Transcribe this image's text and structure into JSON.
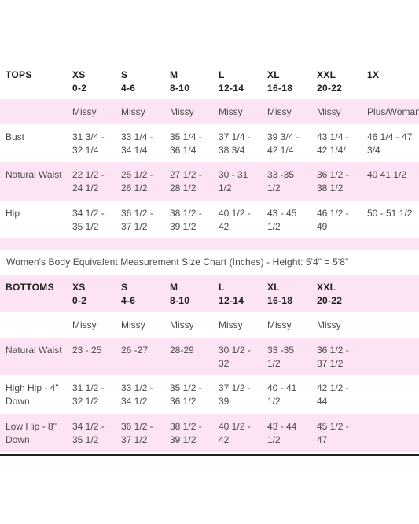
{
  "tops": {
    "header": [
      [
        "TOPS"
      ],
      [
        "XS",
        "0-2"
      ],
      [
        "S",
        "4-6"
      ],
      [
        "M",
        "8-10"
      ],
      [
        "L",
        "12-14"
      ],
      [
        "XL",
        "16-18"
      ],
      [
        "XXL",
        "20-22"
      ],
      [
        "1X"
      ]
    ],
    "rows": [
      {
        "name": "type-row",
        "cells": [
          [
            ""
          ],
          [
            "Missy"
          ],
          [
            "Missy"
          ],
          [
            "Missy"
          ],
          [
            "Missy"
          ],
          [
            "Missy"
          ],
          [
            "Missy"
          ],
          [
            "Plus/Woman"
          ]
        ]
      },
      {
        "name": "bust-row",
        "cells": [
          [
            "Bust"
          ],
          [
            "31 3/4 -",
            "32 1/4"
          ],
          [
            "33 1/4 -",
            "34 1/4"
          ],
          [
            "35 1/4 -",
            "36 1/4"
          ],
          [
            "37 1/4 -",
            "38 3/4"
          ],
          [
            "39 3/4 -",
            "42 1/4"
          ],
          [
            "43 1/4 -",
            "42 1/4/"
          ],
          [
            "46 1/4 - 47",
            "3/4"
          ]
        ]
      },
      {
        "name": "natural-waist-row",
        "cells": [
          [
            "Natural Waist"
          ],
          [
            "22 1/2 -",
            "24 1/2"
          ],
          [
            "25 1/2 -",
            "26 1/2"
          ],
          [
            "27 1/2 -",
            "28 1/2"
          ],
          [
            "30 - 31",
            "1/2"
          ],
          [
            "33 -35",
            "1/2"
          ],
          [
            "36 1/2 -",
            "38 1/2"
          ],
          [
            "40 41 1/2"
          ]
        ]
      },
      {
        "name": "hip-row",
        "cells": [
          [
            "Hip"
          ],
          [
            "34 1/2 -",
            "35 1/2"
          ],
          [
            "36 1/2 -",
            "37 1/2"
          ],
          [
            "38 1/2 -",
            "39 1/2"
          ],
          [
            "40 1/2 -",
            "42"
          ],
          [
            "43 - 45",
            "1/2"
          ],
          [
            "46 1/2 -",
            "49"
          ],
          [
            "50 - 51 1/2"
          ]
        ]
      }
    ]
  },
  "caption": "Women's Body Equivalent Measurement Size Chart (Inches) - Height: 5'4\" = 5'8\"",
  "bottoms": {
    "header": [
      [
        "BOTTOMS"
      ],
      [
        "XS",
        "0-2"
      ],
      [
        "S",
        "4-6"
      ],
      [
        "M",
        "8-10"
      ],
      [
        "L",
        "12-14"
      ],
      [
        "XL",
        "16-18"
      ],
      [
        "XXL",
        "20-22"
      ],
      [
        ""
      ]
    ],
    "rows": [
      {
        "name": "type-row",
        "cells": [
          [
            ""
          ],
          [
            "Missy"
          ],
          [
            "Missy"
          ],
          [
            "Missy"
          ],
          [
            "Missy"
          ],
          [
            "Missy"
          ],
          [
            "Missy"
          ],
          [
            ""
          ]
        ]
      },
      {
        "name": "natural-waist-row",
        "cells": [
          [
            "Natural Waist"
          ],
          [
            "23 - 25"
          ],
          [
            "26 -27"
          ],
          [
            "28-29"
          ],
          [
            "30 1/2 -",
            "32"
          ],
          [
            "33 -35",
            "1/2"
          ],
          [
            "36 1/2 -",
            "37 1/2"
          ],
          [
            ""
          ]
        ]
      },
      {
        "name": "high-hip-row",
        "cells": [
          [
            "High Hip - 4\"",
            "Down"
          ],
          [
            "31 1/2 -",
            "32 1/2"
          ],
          [
            "33 1/2 -",
            "34 1/2"
          ],
          [
            "35 1/2 -",
            "36 1/2"
          ],
          [
            "37 1/2 -",
            "39"
          ],
          [
            "40 - 41",
            "1/2"
          ],
          [
            "42 1/2 -",
            "44"
          ],
          [
            ""
          ]
        ]
      },
      {
        "name": "low-hip-row",
        "cells": [
          [
            "Low Hip - 8\"",
            "Down"
          ],
          [
            "34 1/2 -",
            "35 1/2"
          ],
          [
            "36 1/2 -",
            "37 1/2"
          ],
          [
            "38 1/2 -",
            "39 1/2"
          ],
          [
            "40 1/2 -",
            "42"
          ],
          [
            "43 - 44",
            "1/2"
          ],
          [
            "45 1/2 -",
            "47"
          ],
          [
            ""
          ]
        ]
      }
    ]
  },
  "colors": {
    "stripe": "#fde4f4",
    "text": "#4a4a4a",
    "heading": "#1e1e1e"
  }
}
